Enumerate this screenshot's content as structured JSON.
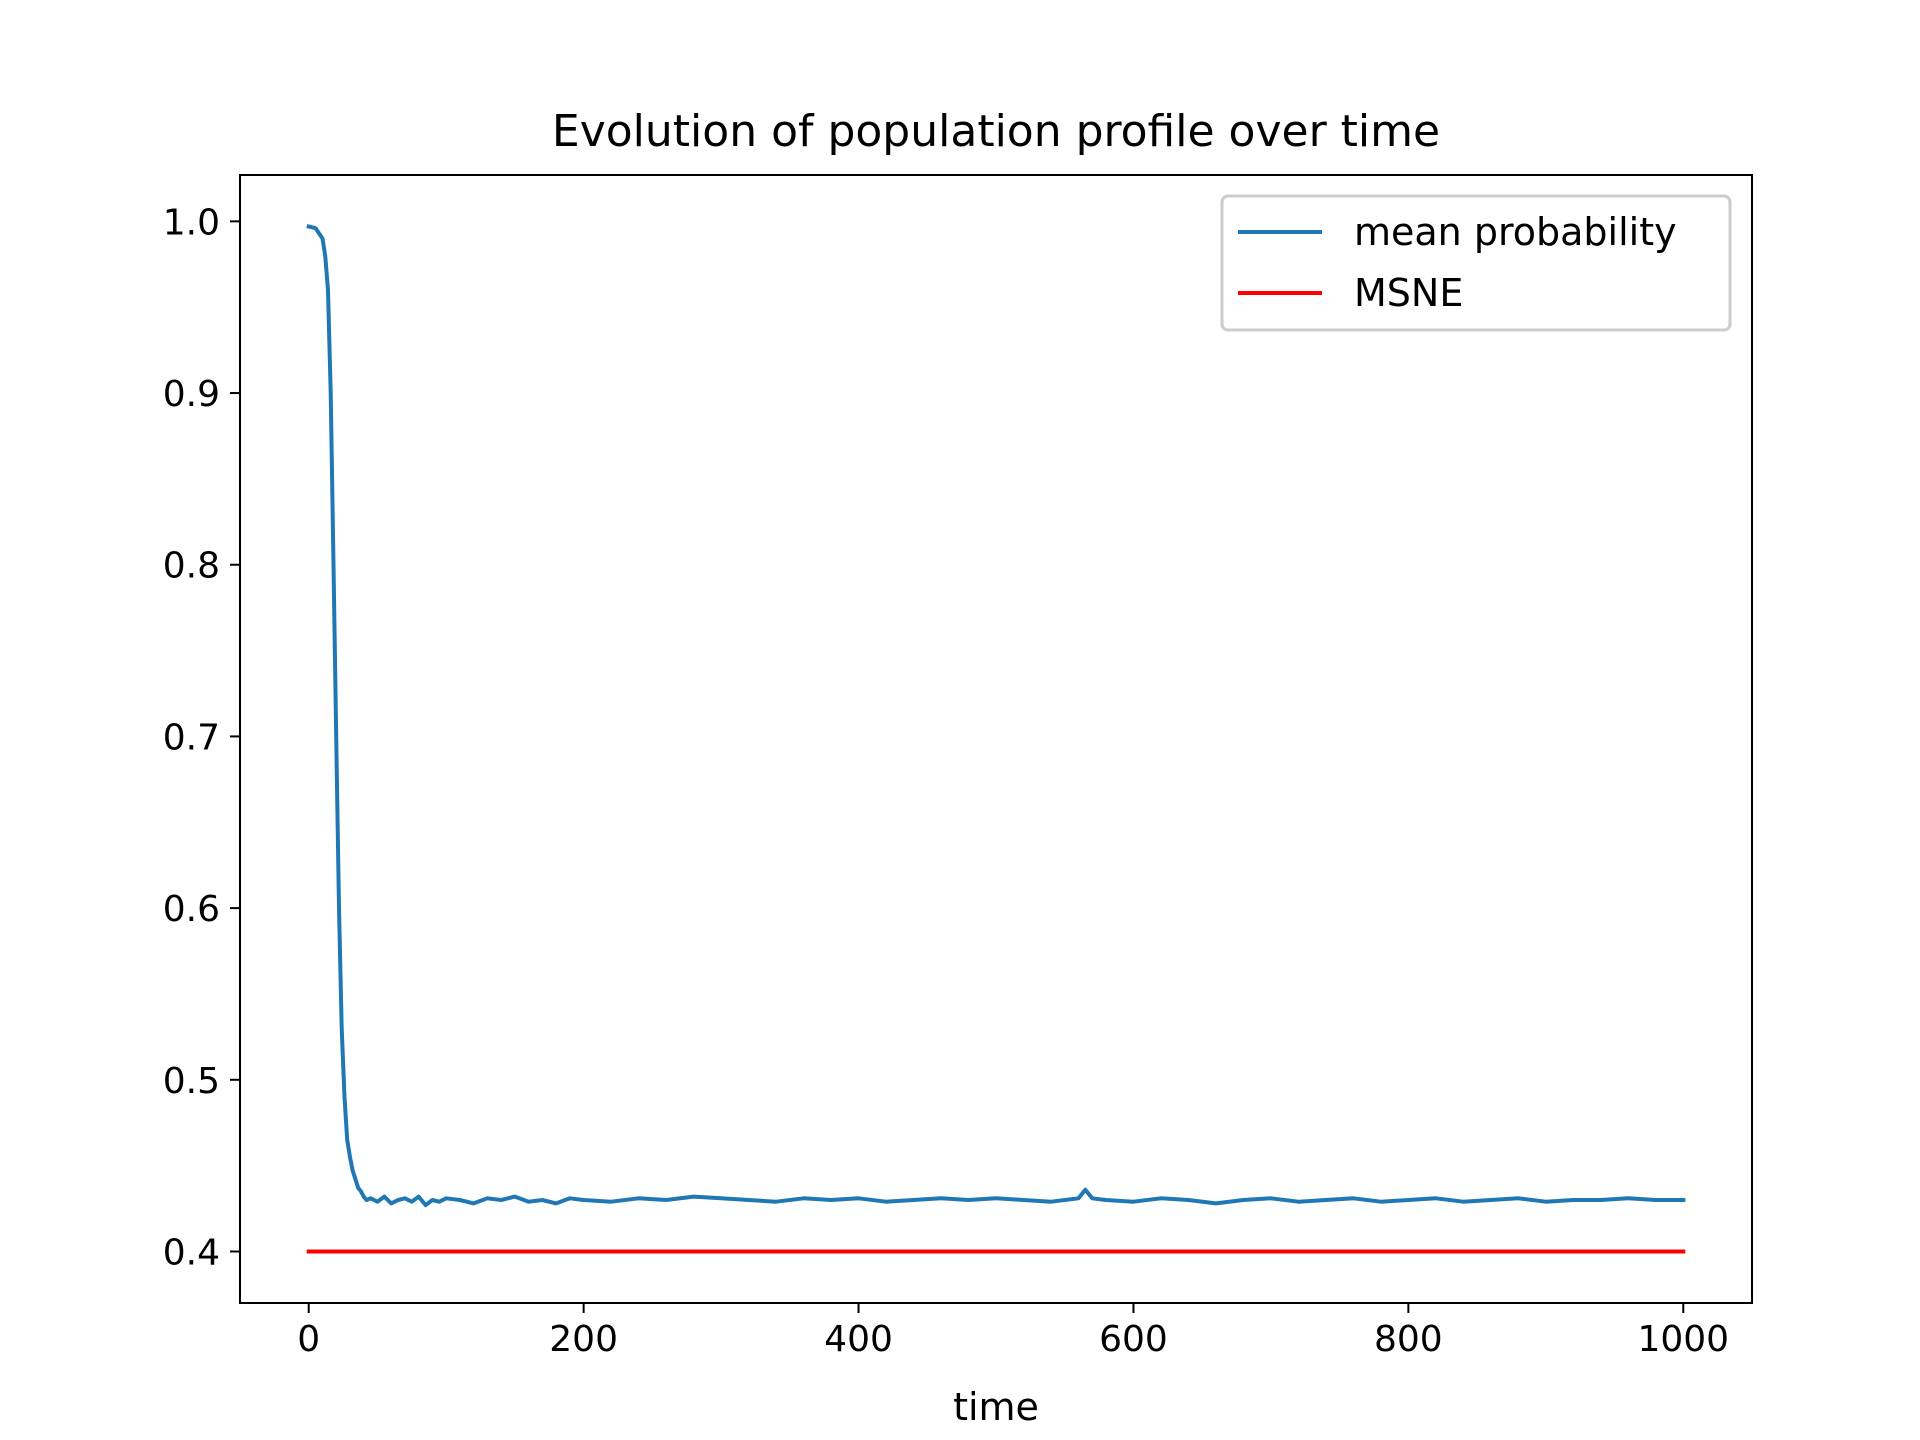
{
  "chart_data": {
    "type": "line",
    "title": "Evolution of population profile over time",
    "xlabel": "time",
    "ylabel": "",
    "xlim": [
      -50,
      1050
    ],
    "ylim": [
      0.37,
      1.027
    ],
    "xticks": [
      {
        "value": 0,
        "label": "0"
      },
      {
        "value": 200,
        "label": "200"
      },
      {
        "value": 400,
        "label": "400"
      },
      {
        "value": 600,
        "label": "600"
      },
      {
        "value": 800,
        "label": "800"
      },
      {
        "value": 1000,
        "label": "1000"
      }
    ],
    "yticks": [
      {
        "value": 0.4,
        "label": "0.4"
      },
      {
        "value": 0.5,
        "label": "0.5"
      },
      {
        "value": 0.6,
        "label": "0.6"
      },
      {
        "value": 0.7,
        "label": "0.7"
      },
      {
        "value": 0.8,
        "label": "0.8"
      },
      {
        "value": 0.9,
        "label": "0.9"
      },
      {
        "value": 1.0,
        "label": "1.0"
      }
    ],
    "grid": false,
    "legend_position": "top-right",
    "series": [
      {
        "name": "mean probability",
        "color": "#1f77b4",
        "x": [
          0,
          5,
          10,
          12,
          14,
          16,
          18,
          20,
          22,
          24,
          26,
          28,
          30,
          32,
          34,
          36,
          38,
          40,
          42,
          45,
          50,
          55,
          60,
          65,
          70,
          75,
          80,
          85,
          90,
          95,
          100,
          110,
          120,
          130,
          140,
          150,
          160,
          170,
          180,
          190,
          200,
          220,
          240,
          260,
          280,
          300,
          320,
          340,
          360,
          380,
          400,
          420,
          440,
          460,
          480,
          500,
          520,
          540,
          560,
          565,
          570,
          580,
          600,
          620,
          640,
          660,
          680,
          700,
          720,
          740,
          760,
          780,
          800,
          820,
          840,
          860,
          880,
          900,
          920,
          940,
          960,
          980,
          1000
        ],
        "y": [
          0.997,
          0.996,
          0.99,
          0.98,
          0.96,
          0.9,
          0.8,
          0.7,
          0.6,
          0.53,
          0.49,
          0.465,
          0.455,
          0.447,
          0.442,
          0.437,
          0.435,
          0.432,
          0.43,
          0.431,
          0.429,
          0.432,
          0.428,
          0.43,
          0.431,
          0.429,
          0.432,
          0.427,
          0.43,
          0.429,
          0.431,
          0.43,
          0.428,
          0.431,
          0.43,
          0.432,
          0.429,
          0.43,
          0.428,
          0.431,
          0.43,
          0.429,
          0.431,
          0.43,
          0.432,
          0.431,
          0.43,
          0.429,
          0.431,
          0.43,
          0.431,
          0.429,
          0.43,
          0.431,
          0.43,
          0.431,
          0.43,
          0.429,
          0.431,
          0.436,
          0.431,
          0.43,
          0.429,
          0.431,
          0.43,
          0.428,
          0.43,
          0.431,
          0.429,
          0.43,
          0.431,
          0.429,
          0.43,
          0.431,
          0.429,
          0.43,
          0.431,
          0.429,
          0.43,
          0.43,
          0.431,
          0.43,
          0.43
        ]
      },
      {
        "name": "MSNE",
        "color": "#ff0000",
        "x": [
          0,
          1000
        ],
        "y": [
          0.4,
          0.4
        ]
      }
    ]
  }
}
